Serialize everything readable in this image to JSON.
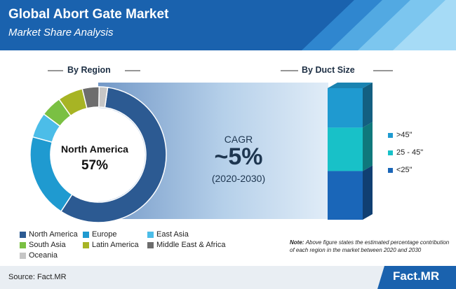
{
  "header": {
    "title": "Global Abort Gate Market",
    "subtitle": "Market Share Analysis"
  },
  "chart_data": [
    {
      "type": "pie",
      "title": "By Region",
      "center_label": "North America",
      "center_value": "57%",
      "slices": [
        {
          "label": "North America",
          "value": 57,
          "color": "#2c5a92"
        },
        {
          "label": "Europe",
          "value": 20,
          "color": "#1f9ad0"
        },
        {
          "label": "East Asia",
          "value": 6,
          "color": "#4cbde8"
        },
        {
          "label": "South Asia",
          "value": 5,
          "color": "#7ac043"
        },
        {
          "label": "Latin America",
          "value": 6,
          "color": "#a7b424"
        },
        {
          "label": "Middle East & Africa",
          "value": 4,
          "color": "#6d6d6d"
        },
        {
          "label": "Oceania",
          "value": 2,
          "color": "#c6c6c6"
        }
      ]
    },
    {
      "type": "bar",
      "title": "By Duct Size",
      "categories": [
        ">45\"",
        "25 - 45\"",
        "<25\""
      ],
      "values": [
        30,
        33,
        37
      ],
      "colors": [
        "#1f9ad0",
        "#18c1c8",
        "#1a66b8"
      ],
      "stacked": true
    }
  ],
  "cagr": {
    "label": "CAGR",
    "value": "~5%",
    "period": "(2020-2030)"
  },
  "note": {
    "prefix": "Note:",
    "text": "Above figure states the estimated percentage contribution of each region in the market between 2020 and 2030"
  },
  "footer": {
    "source": "Source: Fact.MR",
    "brand": "Fact.MR"
  }
}
